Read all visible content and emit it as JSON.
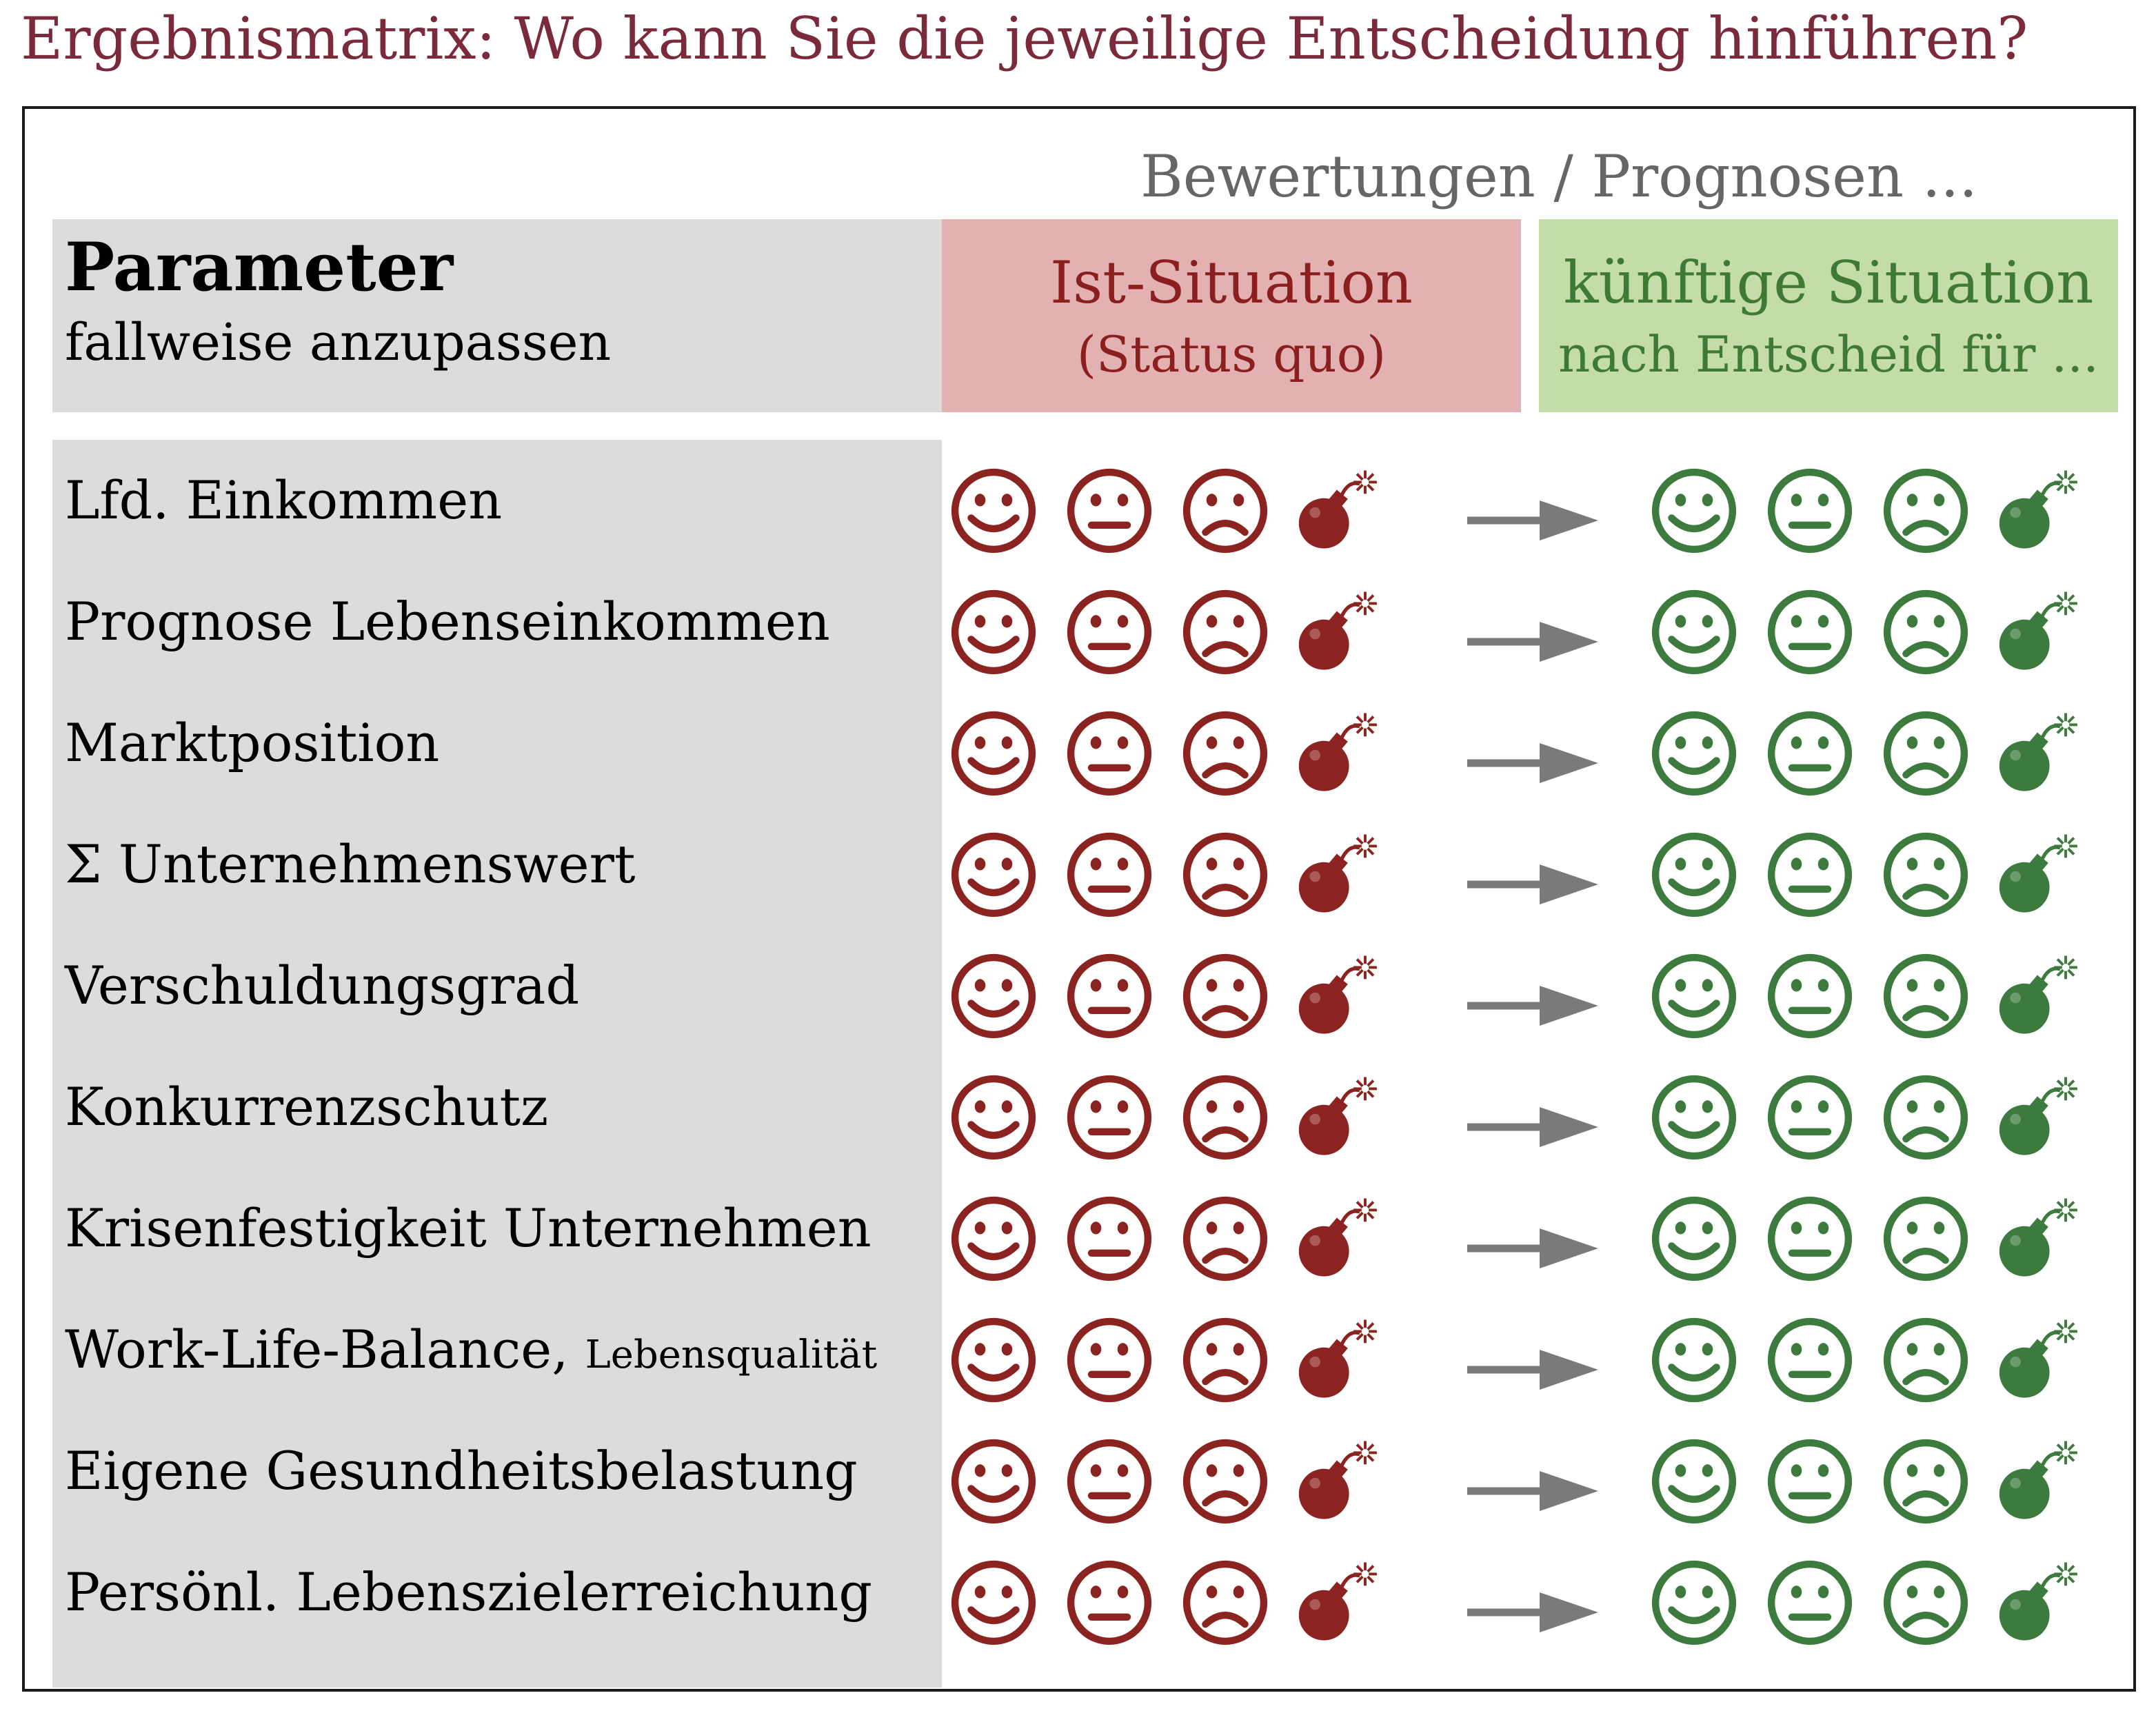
{
  "title": "Ergebnismatrix: Wo kann Sie die jeweilige Entscheidung hinführen?",
  "column_caption": "Bewertungen / Prognosen ...",
  "parameter_header": {
    "title": "Parameter",
    "subtitle": "fallweise anzupassen"
  },
  "ist_header": {
    "title": "Ist-Situation",
    "subtitle": "(Status quo)"
  },
  "future_header": {
    "title": "künftige Situation",
    "subtitle": "nach Entscheid für ..."
  },
  "rating_icons": [
    "smiley-happy-icon",
    "smiley-neutral-icon",
    "smiley-sad-icon",
    "bomb-icon"
  ],
  "transition_icon": "arrow-right-icon",
  "rows": [
    {
      "label": "Lfd. Einkommen",
      "note": ""
    },
    {
      "label": "Prognose Lebenseinkommen",
      "note": ""
    },
    {
      "label": "Marktposition",
      "note": ""
    },
    {
      "label": "Σ Unternehmenswert",
      "note": ""
    },
    {
      "label": "Verschuldungsgrad",
      "note": ""
    },
    {
      "label": "Konkurrenzschutz",
      "note": ""
    },
    {
      "label": "Krisenfestigkeit Unternehmen",
      "note": ""
    },
    {
      "label": "Work-Life-Balance,",
      "note": "Lebensqualität"
    },
    {
      "label": "Eigene Gesundheitsbelastung",
      "note": ""
    },
    {
      "label": "Persönl. Lebenszielerreichung",
      "note": ""
    }
  ],
  "colors": {
    "title": "#7a2a3a",
    "ist_header_bg": "#e3b1b1",
    "ist_header_text": "#8b1f1f",
    "future_header_bg": "#c4dca8",
    "future_header_text": "#3f7a34",
    "parameter_bg": "#dcdcdc",
    "ist_icon": "#8b2420",
    "future_icon": "#3d7a3e",
    "arrow": "#7a7a7a",
    "caption": "#666666"
  }
}
